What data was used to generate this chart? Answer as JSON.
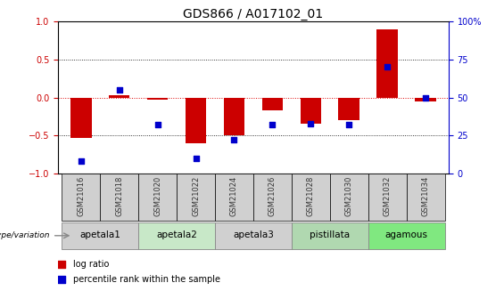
{
  "title": "GDS866 / A017102_01",
  "samples": [
    "GSM21016",
    "GSM21018",
    "GSM21020",
    "GSM21022",
    "GSM21024",
    "GSM21026",
    "GSM21028",
    "GSM21030",
    "GSM21032",
    "GSM21034"
  ],
  "log_ratio": [
    -0.53,
    0.03,
    -0.03,
    -0.6,
    -0.5,
    -0.17,
    -0.35,
    -0.3,
    0.9,
    -0.05
  ],
  "percentile": [
    8,
    55,
    32,
    10,
    22,
    32,
    33,
    32,
    70,
    50
  ],
  "groups": [
    {
      "label": "apetala1",
      "indices": [
        0,
        1
      ],
      "color": "#d0d0d0"
    },
    {
      "label": "apetala2",
      "indices": [
        2,
        3
      ],
      "color": "#c8e8c8"
    },
    {
      "label": "apetala3",
      "indices": [
        4,
        5
      ],
      "color": "#d0d0d0"
    },
    {
      "label": "pistillata",
      "indices": [
        6,
        7
      ],
      "color": "#b0d8b0"
    },
    {
      "label": "agamous",
      "indices": [
        8,
        9
      ],
      "color": "#80e880"
    }
  ],
  "bar_color": "#cc0000",
  "dot_color": "#0000cc",
  "ylim": [
    -1,
    1
  ],
  "y2lim": [
    0,
    100
  ],
  "yticks": [
    -1,
    -0.5,
    0,
    0.5,
    1
  ],
  "y2ticks": [
    0,
    25,
    50,
    75,
    100
  ],
  "hline_zero_color": "#dd0000",
  "hline_dotted_color": "#000000",
  "bar_width": 0.55,
  "dot_size": 25,
  "title_fontsize": 10,
  "tick_fontsize": 7,
  "label_fontsize": 7,
  "group_label_fontsize": 7.5,
  "sample_fontsize": 6,
  "legend_fontsize": 7,
  "background_color": "#ffffff",
  "plot_bg_color": "#ffffff",
  "genotype_label": "genotype/variation",
  "legend_items": [
    "log ratio",
    "percentile rank within the sample"
  ],
  "sample_box_color": "#d0d0d0",
  "y2tick_labels": [
    "0",
    "25",
    "50",
    "75",
    "100%"
  ]
}
